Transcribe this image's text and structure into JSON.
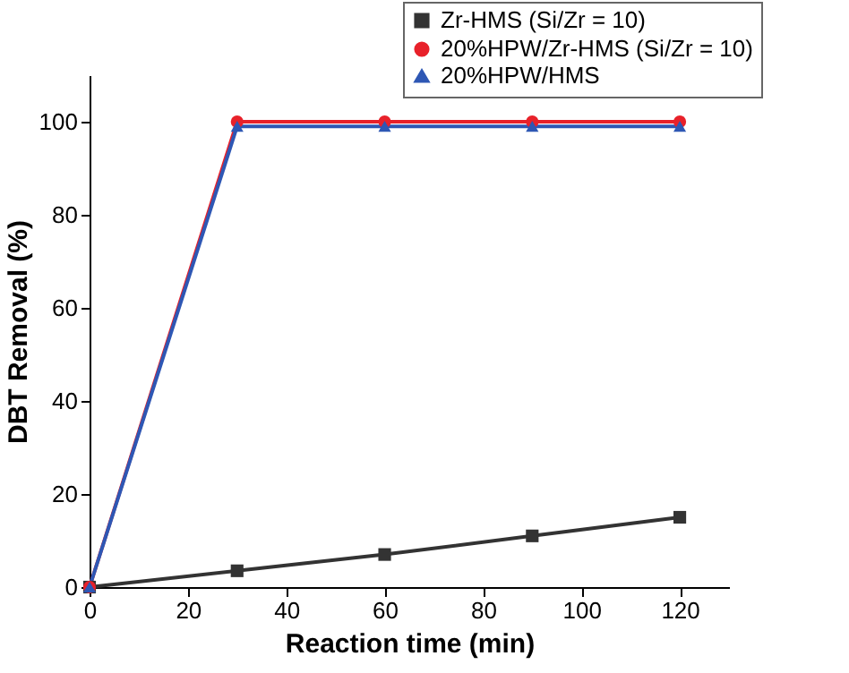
{
  "chart_data": {
    "type": "line",
    "xlabel": "Reaction time (min)",
    "ylabel": "DBT Removal (%)",
    "x": [
      0,
      30,
      60,
      90,
      120
    ],
    "series": [
      {
        "name": "Zr-HMS (Si/Zr = 10)",
        "color": "#333333",
        "marker": "square",
        "values": [
          0,
          3.5,
          7,
          11,
          15
        ]
      },
      {
        "name": "20%HPW/Zr-HMS (Si/Zr = 10)",
        "color": "#e8212a",
        "marker": "circle",
        "values": [
          0,
          100,
          100,
          100,
          100
        ]
      },
      {
        "name": "20%HPW/HMS",
        "color": "#2e57b4",
        "marker": "triangle",
        "values": [
          0,
          99,
          99,
          99,
          99
        ]
      }
    ],
    "xlim": [
      0,
      130
    ],
    "xticks": [
      0,
      20,
      40,
      60,
      80,
      100,
      120
    ],
    "ylim": [
      0,
      110
    ],
    "yticks": [
      0,
      20,
      40,
      60,
      80,
      100
    ],
    "grid": false,
    "legend": "top right",
    "line_style": "solid"
  }
}
